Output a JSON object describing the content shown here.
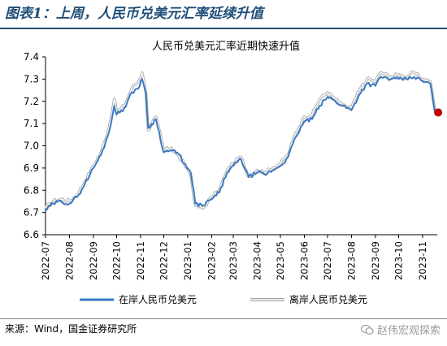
{
  "header": {
    "figure_title": "图表1：上周，人民币兑美元汇率延续升值"
  },
  "footer": {
    "source": "来源：Wind，国金证券研究所"
  },
  "watermark": {
    "text": "赵伟宏观探索",
    "icon": "wechat-icon"
  },
  "colors": {
    "onshore": "#3b79c0",
    "offshore_outline": "#a6a6a6",
    "marker": "#c00000",
    "header_rule": "#1f4e79"
  },
  "chart_data": {
    "type": "line",
    "title": "人民币兑美元汇率近期快速升值",
    "xlabel": "",
    "ylabel": "",
    "ylim": [
      6.6,
      7.4
    ],
    "yticks": [
      "6.6",
      "6.7",
      "6.8",
      "6.9",
      "7.0",
      "7.1",
      "7.2",
      "7.3",
      "7.4"
    ],
    "x_range": [
      "2022-07-01",
      "2023-11-20"
    ],
    "xticks": [
      "2022-07",
      "2022-08",
      "2022-09",
      "2022-10",
      "2022-11",
      "2022-12",
      "2023-01",
      "2023-02",
      "2023-03",
      "2023-04",
      "2023-05",
      "2023-06",
      "2023-07",
      "2023-08",
      "2023-09",
      "2023-10",
      "2023-11"
    ],
    "legend_position": "bottom",
    "grid": false,
    "series": [
      {
        "name": "在岸人民币兑美元",
        "style": "solid",
        "x": [
          "2022-07-01",
          "2022-07-11",
          "2022-07-21",
          "2022-08-01",
          "2022-08-11",
          "2022-08-21",
          "2022-09-01",
          "2022-09-11",
          "2022-09-21",
          "2022-09-28",
          "2022-10-01",
          "2022-10-11",
          "2022-10-21",
          "2022-10-31",
          "2022-11-03",
          "2022-11-08",
          "2022-11-11",
          "2022-11-21",
          "2022-12-01",
          "2022-12-11",
          "2022-12-21",
          "2022-12-31",
          "2023-01-05",
          "2023-01-11",
          "2023-01-21",
          "2023-02-01",
          "2023-02-11",
          "2023-02-21",
          "2023-03-01",
          "2023-03-11",
          "2023-03-21",
          "2023-04-01",
          "2023-04-11",
          "2023-04-21",
          "2023-05-01",
          "2023-05-11",
          "2023-05-21",
          "2023-06-01",
          "2023-06-11",
          "2023-06-21",
          "2023-07-01",
          "2023-07-11",
          "2023-07-21",
          "2023-08-01",
          "2023-08-11",
          "2023-08-21",
          "2023-09-01",
          "2023-09-08",
          "2023-09-21",
          "2023-10-01",
          "2023-10-11",
          "2023-10-21",
          "2023-11-01",
          "2023-11-11",
          "2023-11-17"
        ],
        "values": [
          6.71,
          6.74,
          6.75,
          6.74,
          6.77,
          6.83,
          6.9,
          6.96,
          7.06,
          7.18,
          7.14,
          7.17,
          7.24,
          7.27,
          7.3,
          7.23,
          7.08,
          7.12,
          6.97,
          6.98,
          6.96,
          6.9,
          6.88,
          6.74,
          6.73,
          6.76,
          6.79,
          6.88,
          6.91,
          6.94,
          6.86,
          6.88,
          6.87,
          6.89,
          6.91,
          6.95,
          7.04,
          7.11,
          7.12,
          7.18,
          7.22,
          7.2,
          7.18,
          7.16,
          7.23,
          7.28,
          7.27,
          7.31,
          7.3,
          7.3,
          7.3,
          7.31,
          7.29,
          7.28,
          7.15
        ]
      },
      {
        "name": "离岸人民币兑美元",
        "style": "double-outline",
        "x": [
          "2022-07-01",
          "2022-07-11",
          "2022-07-21",
          "2022-08-01",
          "2022-08-11",
          "2022-08-21",
          "2022-09-01",
          "2022-09-11",
          "2022-09-21",
          "2022-09-28",
          "2022-10-01",
          "2022-10-11",
          "2022-10-21",
          "2022-10-31",
          "2022-11-03",
          "2022-11-08",
          "2022-11-11",
          "2022-11-21",
          "2022-12-01",
          "2022-12-11",
          "2022-12-21",
          "2022-12-31",
          "2023-01-05",
          "2023-01-11",
          "2023-01-21",
          "2023-02-01",
          "2023-02-11",
          "2023-02-21",
          "2023-03-01",
          "2023-03-11",
          "2023-03-21",
          "2023-04-01",
          "2023-04-11",
          "2023-04-21",
          "2023-05-01",
          "2023-05-11",
          "2023-05-21",
          "2023-06-01",
          "2023-06-11",
          "2023-06-21",
          "2023-07-01",
          "2023-07-11",
          "2023-07-21",
          "2023-08-01",
          "2023-08-11",
          "2023-08-21",
          "2023-09-01",
          "2023-09-08",
          "2023-09-21",
          "2023-10-01",
          "2023-10-11",
          "2023-10-21",
          "2023-11-01",
          "2023-11-11",
          "2023-11-17"
        ],
        "values": [
          6.72,
          6.75,
          6.76,
          6.75,
          6.78,
          6.84,
          6.91,
          6.97,
          7.08,
          7.21,
          7.15,
          7.18,
          7.26,
          7.3,
          7.33,
          7.24,
          7.07,
          7.13,
          6.98,
          6.99,
          6.95,
          6.9,
          6.87,
          6.73,
          6.72,
          6.77,
          6.8,
          6.89,
          6.92,
          6.95,
          6.86,
          6.89,
          6.88,
          6.9,
          6.92,
          6.96,
          7.06,
          7.13,
          7.14,
          7.21,
          7.24,
          7.21,
          7.18,
          7.17,
          7.25,
          7.3,
          7.29,
          7.33,
          7.31,
          7.32,
          7.31,
          7.33,
          7.3,
          7.29,
          7.16
        ]
      }
    ],
    "highlight_point": {
      "x": "2023-11-17",
      "y": 7.15
    }
  }
}
